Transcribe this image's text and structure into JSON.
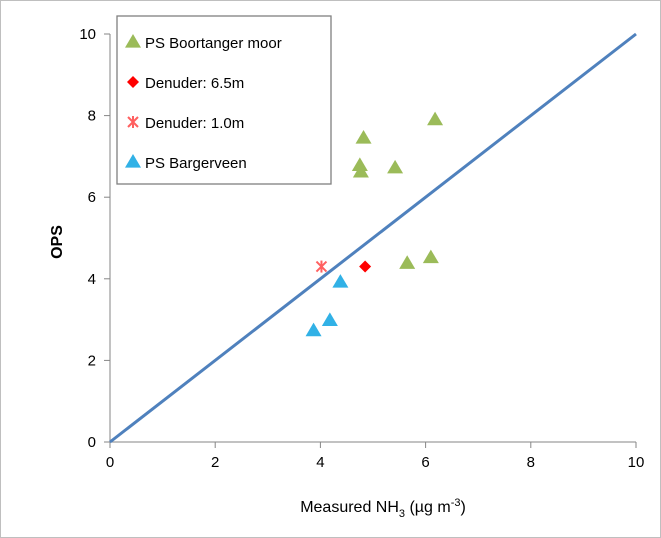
{
  "chart_data": {
    "type": "scatter",
    "xlabel_main": "Measured  NH",
    "xlabel_sub": "3",
    "xlabel_unit": " (µg m",
    "xlabel_sup": "-3",
    "xlabel_close": ")",
    "ylabel": "OPS",
    "xlim": [
      0,
      10
    ],
    "ylim": [
      0,
      10
    ],
    "x_ticks": [
      "0",
      "2",
      "4",
      "6",
      "8",
      "10"
    ],
    "y_ticks": [
      "0",
      "2",
      "4",
      "6",
      "8",
      "10"
    ],
    "grid": false,
    "legend_position": "top-left",
    "series": [
      {
        "name": "PS Boortanger moor",
        "marker": "triangle",
        "color": "#9bbb59",
        "points": [
          {
            "x": 4.82,
            "y": 7.45
          },
          {
            "x": 6.18,
            "y": 7.9
          },
          {
            "x": 4.75,
            "y": 6.78
          },
          {
            "x": 4.77,
            "y": 6.62
          },
          {
            "x": 5.42,
            "y": 6.72
          },
          {
            "x": 5.65,
            "y": 4.38
          },
          {
            "x": 6.1,
            "y": 4.52
          }
        ]
      },
      {
        "name": "Denuder: 6.5m",
        "marker": "diamond",
        "color": "#ff0000",
        "points": [
          {
            "x": 4.85,
            "y": 4.3
          }
        ]
      },
      {
        "name": "Denuder: 1.0m",
        "marker": "star",
        "color": "#ff6060",
        "points": [
          {
            "x": 4.02,
            "y": 4.3
          }
        ]
      },
      {
        "name": "PS Bargerveen",
        "marker": "triangle",
        "color": "#31b1e6",
        "points": [
          {
            "x": 4.38,
            "y": 3.92
          },
          {
            "x": 4.18,
            "y": 2.98
          },
          {
            "x": 3.87,
            "y": 2.73
          }
        ]
      }
    ],
    "reference_line": {
      "x": [
        0,
        10
      ],
      "y": [
        0,
        10
      ],
      "color": "#4f81bd"
    }
  }
}
